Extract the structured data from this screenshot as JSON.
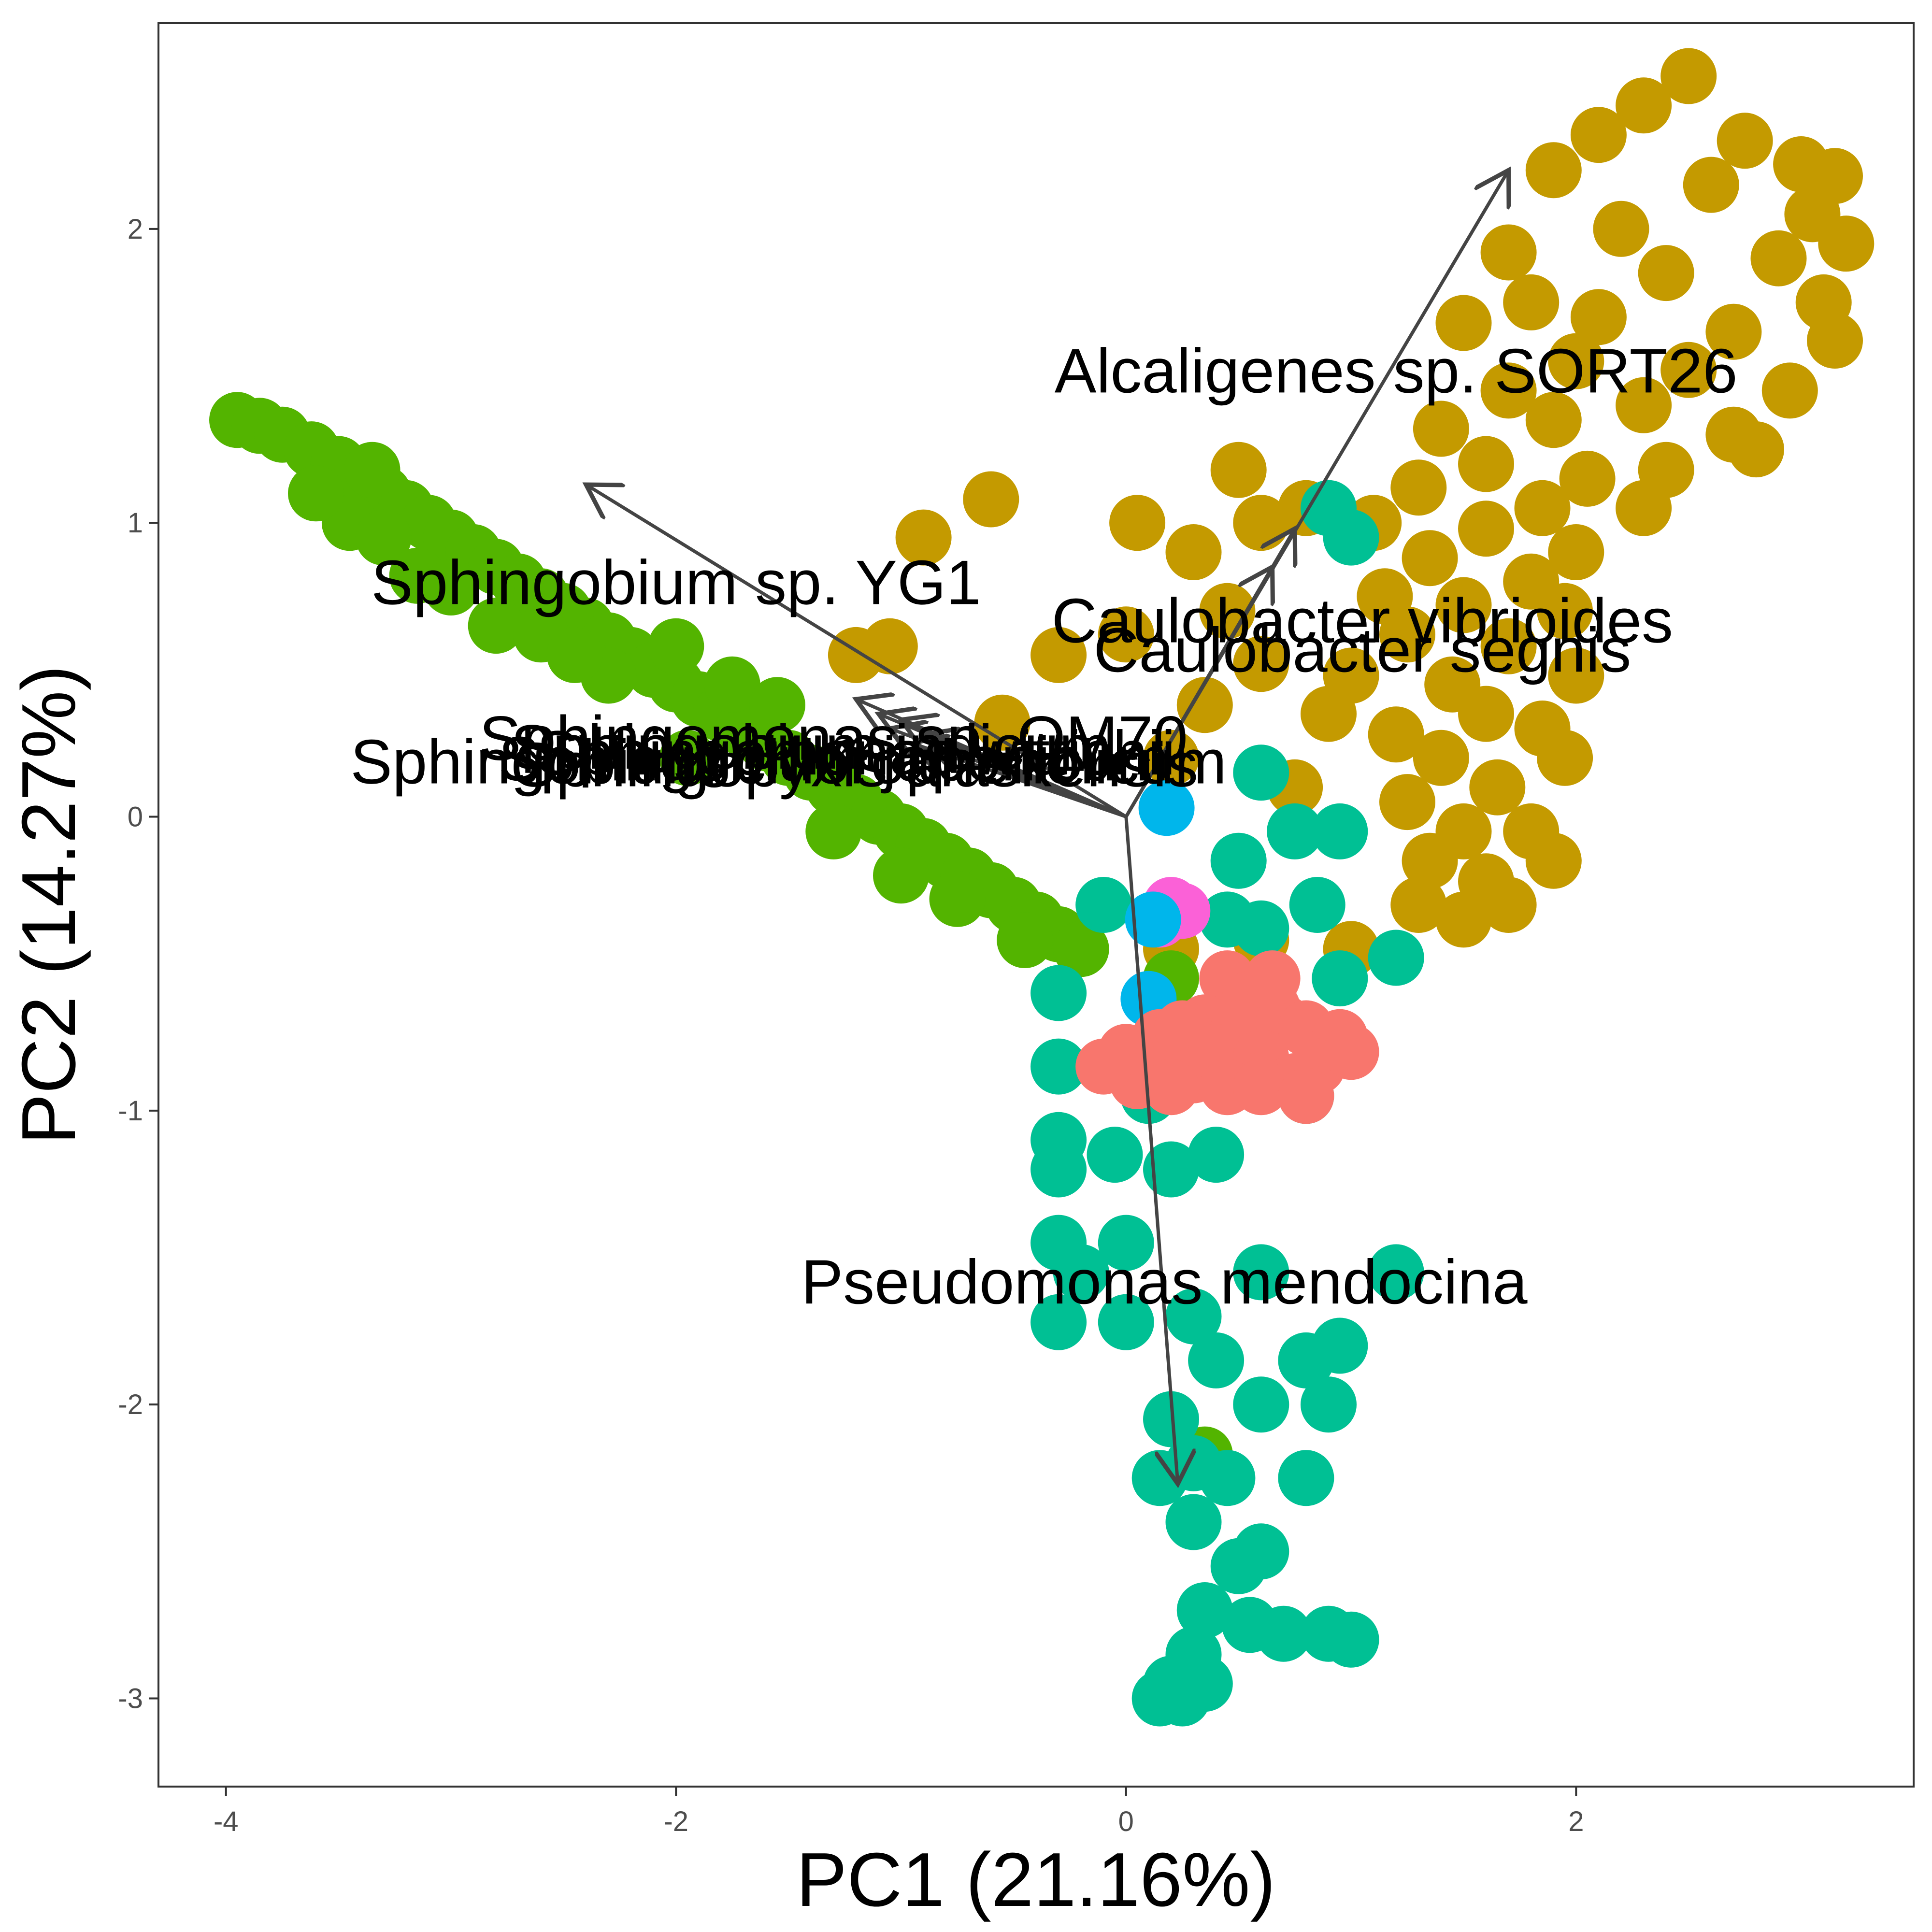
{
  "chart_data": {
    "type": "scatter",
    "title": "",
    "xlabel": "PC1 (21.16%)",
    "ylabel": "PC2 (14.27%)",
    "xlim": [
      -4.3,
      3.5
    ],
    "ylim": [
      -3.3,
      2.7
    ],
    "xticks": [
      -4,
      -2,
      0,
      2
    ],
    "yticks": [
      -3,
      -2,
      -1,
      0,
      1,
      2
    ],
    "grid": false,
    "legend": "none",
    "colors": [
      "#C49A00",
      "#53B400",
      "#00C094",
      "#FB61D7",
      "#00B6EB",
      "#F8766D"
    ],
    "series": [
      {
        "color": "#C49A00",
        "points": [
          [
            2.5,
            2.52
          ],
          [
            2.3,
            2.42
          ],
          [
            2.1,
            2.32
          ],
          [
            2.75,
            2.3
          ],
          [
            3.0,
            2.22
          ],
          [
            3.15,
            2.18
          ],
          [
            1.9,
            2.2
          ],
          [
            2.6,
            2.15
          ],
          [
            3.05,
            2.05
          ],
          [
            3.2,
            1.95
          ],
          [
            2.2,
            2.0
          ],
          [
            1.7,
            1.92
          ],
          [
            2.9,
            1.9
          ],
          [
            2.4,
            1.85
          ],
          [
            1.8,
            1.75
          ],
          [
            3.1,
            1.75
          ],
          [
            2.1,
            1.7
          ],
          [
            2.7,
            1.65
          ],
          [
            3.15,
            1.62
          ],
          [
            1.5,
            1.68
          ],
          [
            2.0,
            1.55
          ],
          [
            2.5,
            1.52
          ],
          [
            1.7,
            1.45
          ],
          [
            2.95,
            1.45
          ],
          [
            2.3,
            1.4
          ],
          [
            1.9,
            1.35
          ],
          [
            2.7,
            1.3
          ],
          [
            1.4,
            1.32
          ],
          [
            2.8,
            1.25
          ],
          [
            1.6,
            1.2
          ],
          [
            2.4,
            1.18
          ],
          [
            2.05,
            1.15
          ],
          [
            1.3,
            1.12
          ],
          [
            1.85,
            1.05
          ],
          [
            2.3,
            1.05
          ],
          [
            1.1,
            1.0
          ],
          [
            1.6,
            0.98
          ],
          [
            2.0,
            0.9
          ],
          [
            1.35,
            0.88
          ],
          [
            1.8,
            0.8
          ],
          [
            1.15,
            0.75
          ],
          [
            1.5,
            0.72
          ],
          [
            1.95,
            0.7
          ],
          [
            1.25,
            0.62
          ],
          [
            1.7,
            0.58
          ],
          [
            2.0,
            0.48
          ],
          [
            1.45,
            0.45
          ],
          [
            1.0,
            0.48
          ],
          [
            1.6,
            0.35
          ],
          [
            1.85,
            0.3
          ],
          [
            1.2,
            0.28
          ],
          [
            1.4,
            0.2
          ],
          [
            1.95,
            0.2
          ],
          [
            1.65,
            0.1
          ],
          [
            1.25,
            0.05
          ],
          [
            1.5,
            -0.05
          ],
          [
            1.8,
            -0.05
          ],
          [
            1.35,
            -0.15
          ],
          [
            1.6,
            -0.22
          ],
          [
            1.9,
            -0.15
          ],
          [
            1.3,
            -0.3
          ],
          [
            1.7,
            -0.3
          ],
          [
            1.5,
            -0.35
          ],
          [
            1.0,
            -0.45
          ],
          [
            0.6,
            -0.42
          ],
          [
            0.2,
            -0.45
          ],
          [
            -1.2,
            0.55
          ],
          [
            -1.05,
            0.58
          ],
          [
            -0.9,
            0.95
          ],
          [
            -0.6,
            1.08
          ],
          [
            0.05,
            1.0
          ],
          [
            0.3,
            0.9
          ],
          [
            0.5,
            1.18
          ],
          [
            0.6,
            1.0
          ],
          [
            0.8,
            1.05
          ],
          [
            0.45,
            0.7
          ],
          [
            0.6,
            0.52
          ],
          [
            0.35,
            0.38
          ],
          [
            -0.3,
            0.55
          ],
          [
            -0.55,
            0.32
          ],
          [
            0.0,
            0.62
          ],
          [
            0.2,
            0.2
          ],
          [
            0.75,
            0.1
          ],
          [
            0.9,
            0.35
          ]
        ]
      },
      {
        "color": "#53B400",
        "points": [
          [
            -3.95,
            1.35
          ],
          [
            -3.85,
            1.33
          ],
          [
            -3.75,
            1.3
          ],
          [
            -3.62,
            1.25
          ],
          [
            -3.5,
            1.2
          ],
          [
            -3.4,
            1.15
          ],
          [
            -3.3,
            1.1
          ],
          [
            -3.2,
            1.05
          ],
          [
            -3.1,
            1.0
          ],
          [
            -3.0,
            0.95
          ],
          [
            -2.9,
            0.9
          ],
          [
            -2.8,
            0.85
          ],
          [
            -2.7,
            0.8
          ],
          [
            -2.6,
            0.75
          ],
          [
            -2.5,
            0.7
          ],
          [
            -2.4,
            0.65
          ],
          [
            -2.3,
            0.6
          ],
          [
            -2.2,
            0.55
          ],
          [
            -2.1,
            0.5
          ],
          [
            -2.0,
            0.45
          ],
          [
            -1.9,
            0.4
          ],
          [
            -1.8,
            0.35
          ],
          [
            -1.7,
            0.3
          ],
          [
            -1.6,
            0.25
          ],
          [
            -1.5,
            0.2
          ],
          [
            -1.4,
            0.15
          ],
          [
            -1.3,
            0.1
          ],
          [
            -1.2,
            0.05
          ],
          [
            -1.1,
            0.0
          ],
          [
            -1.0,
            -0.05
          ],
          [
            -0.9,
            -0.1
          ],
          [
            -0.8,
            -0.15
          ],
          [
            -0.7,
            -0.2
          ],
          [
            -0.6,
            -0.25
          ],
          [
            -0.5,
            -0.3
          ],
          [
            -0.4,
            -0.35
          ],
          [
            -0.3,
            -0.4
          ],
          [
            -0.2,
            -0.45
          ],
          [
            -3.45,
            1.0
          ],
          [
            -3.3,
            0.95
          ],
          [
            -3.15,
            0.82
          ],
          [
            -3.0,
            0.78
          ],
          [
            -2.8,
            0.65
          ],
          [
            -2.6,
            0.62
          ],
          [
            -2.3,
            0.48
          ],
          [
            -2.0,
            0.58
          ],
          [
            -1.75,
            0.45
          ],
          [
            -1.55,
            0.38
          ],
          [
            -1.3,
            -0.05
          ],
          [
            -1.0,
            -0.2
          ],
          [
            -0.75,
            -0.28
          ],
          [
            -0.45,
            -0.42
          ],
          [
            -1.95,
            0.2
          ],
          [
            -3.6,
            1.1
          ],
          [
            -3.35,
            1.18
          ],
          [
            -2.45,
            0.55
          ],
          [
            0.2,
            -0.55
          ],
          [
            0.35,
            -0.75
          ],
          [
            0.4,
            -0.85
          ],
          [
            0.35,
            -2.17
          ]
        ]
      },
      {
        "color": "#00C094",
        "points": [
          [
            0.9,
            1.05
          ],
          [
            1.0,
            0.95
          ],
          [
            0.6,
            0.15
          ],
          [
            0.75,
            -0.05
          ],
          [
            0.95,
            -0.05
          ],
          [
            0.5,
            -0.15
          ],
          [
            0.85,
            -0.3
          ],
          [
            0.45,
            -0.35
          ],
          [
            0.6,
            -0.38
          ],
          [
            1.2,
            -0.48
          ],
          [
            0.95,
            -0.55
          ],
          [
            -0.1,
            -0.3
          ],
          [
            -0.3,
            -0.6
          ],
          [
            0.85,
            -0.75
          ],
          [
            -0.3,
            -0.85
          ],
          [
            0.1,
            -0.95
          ],
          [
            0.25,
            -0.85
          ],
          [
            0.8,
            -0.95
          ],
          [
            -0.3,
            -1.1
          ],
          [
            -0.3,
            -1.2
          ],
          [
            -0.05,
            -1.15
          ],
          [
            0.2,
            -1.2
          ],
          [
            0.4,
            -1.15
          ],
          [
            -0.3,
            -1.45
          ],
          [
            0.0,
            -1.45
          ],
          [
            -0.2,
            -1.55
          ],
          [
            0.6,
            -1.55
          ],
          [
            1.2,
            -1.55
          ],
          [
            -0.3,
            -1.72
          ],
          [
            0.0,
            -1.72
          ],
          [
            0.3,
            -1.7
          ],
          [
            0.4,
            -1.85
          ],
          [
            0.8,
            -1.85
          ],
          [
            0.95,
            -1.8
          ],
          [
            0.2,
            -2.05
          ],
          [
            0.6,
            -2.0
          ],
          [
            0.9,
            -2.0
          ],
          [
            0.3,
            -2.2
          ],
          [
            0.45,
            -2.25
          ],
          [
            0.8,
            -2.25
          ],
          [
            0.15,
            -2.25
          ],
          [
            0.3,
            -2.4
          ],
          [
            0.5,
            -2.55
          ],
          [
            0.6,
            -2.5
          ],
          [
            0.35,
            -2.7
          ],
          [
            0.55,
            -2.75
          ],
          [
            0.7,
            -2.78
          ],
          [
            0.9,
            -2.78
          ],
          [
            1.0,
            -2.8
          ],
          [
            0.3,
            -2.85
          ],
          [
            0.2,
            -2.95
          ],
          [
            0.35,
            -2.95
          ],
          [
            0.15,
            -3.0
          ],
          [
            0.25,
            -3.0
          ]
        ]
      },
      {
        "color": "#FB61D7",
        "points": [
          [
            0.2,
            -0.3
          ],
          [
            0.15,
            -0.35
          ],
          [
            0.25,
            -0.32
          ]
        ]
      },
      {
        "color": "#00B6EB",
        "points": [
          [
            0.18,
            0.03
          ],
          [
            0.12,
            -0.35
          ],
          [
            0.1,
            -0.62
          ]
        ]
      },
      {
        "color": "#F8766D",
        "points": [
          [
            0.45,
            -0.55
          ],
          [
            0.55,
            -0.62
          ],
          [
            0.65,
            -0.65
          ],
          [
            0.35,
            -0.7
          ],
          [
            0.5,
            -0.72
          ],
          [
            0.7,
            -0.7
          ],
          [
            0.8,
            -0.72
          ],
          [
            0.95,
            -0.75
          ],
          [
            0.15,
            -0.75
          ],
          [
            0.25,
            -0.72
          ],
          [
            0.0,
            -0.8
          ],
          [
            0.4,
            -0.8
          ],
          [
            0.6,
            -0.82
          ],
          [
            0.85,
            -0.85
          ],
          [
            1.0,
            -0.8
          ],
          [
            0.3,
            -0.88
          ],
          [
            0.55,
            -0.9
          ],
          [
            0.75,
            -0.9
          ],
          [
            0.05,
            -0.9
          ],
          [
            0.2,
            -0.92
          ],
          [
            0.45,
            -0.92
          ],
          [
            0.6,
            -0.92
          ],
          [
            0.8,
            -0.95
          ],
          [
            -0.1,
            -0.85
          ],
          [
            0.65,
            -0.55
          ]
        ]
      }
    ],
    "arrows": [
      {
        "label": "Alcaligenes sp. SORT26",
        "end": [
          1.7,
          2.2
        ],
        "label_pos": [
          1.2,
          1.5
        ],
        "anchor": "middle"
      },
      {
        "label": "Sphingobium sp. YG1",
        "end": [
          -2.4,
          1.13
        ],
        "label_pos": [
          -2.0,
          0.78
        ],
        "anchor": "middle"
      },
      {
        "label": "Caulobacter vibrioides",
        "end": [
          0.75,
          0.98
        ],
        "label_pos": [
          1.05,
          0.65
        ],
        "anchor": "middle"
      },
      {
        "label": "Caulobacter segnis",
        "end": [
          0.65,
          0.85
        ],
        "label_pos": [
          1.05,
          0.55
        ],
        "anchor": "middle"
      },
      {
        "label": "Sphingomonas sp. OM70",
        "end": [
          -1.2,
          0.4
        ],
        "label_pos": [
          -1.3,
          0.25
        ],
        "anchor": "middle"
      },
      {
        "label": "Sphingobium indicum",
        "end": [
          -1.1,
          0.35
        ],
        "label_pos": [
          -1.4,
          0.22
        ],
        "anchor": "middle"
      },
      {
        "label": "Sphingomonas wittichii",
        "end": [
          -1.0,
          0.33
        ],
        "label_pos": [
          -1.2,
          0.2
        ],
        "anchor": "middle"
      },
      {
        "label": "Sphingobium japonicum",
        "end": [
          -1.05,
          0.3
        ],
        "label_pos": [
          -1.3,
          0.18
        ],
        "anchor": "middle"
      },
      {
        "label": "Sphingopyxis alaskensis",
        "end": [
          -0.9,
          0.28
        ],
        "label_pos": [
          -1.2,
          0.16
        ],
        "anchor": "middle"
      },
      {
        "label": "Sphingobium chlorophenolicum",
        "end": [
          -0.95,
          0.25
        ],
        "label_pos": [
          -1.5,
          0.17
        ],
        "anchor": "middle"
      },
      {
        "label": "Pseudomonas mendocina",
        "end": [
          0.23,
          -2.27
        ],
        "label_pos": [
          0.17,
          -1.6
        ],
        "anchor": "middle"
      }
    ]
  }
}
